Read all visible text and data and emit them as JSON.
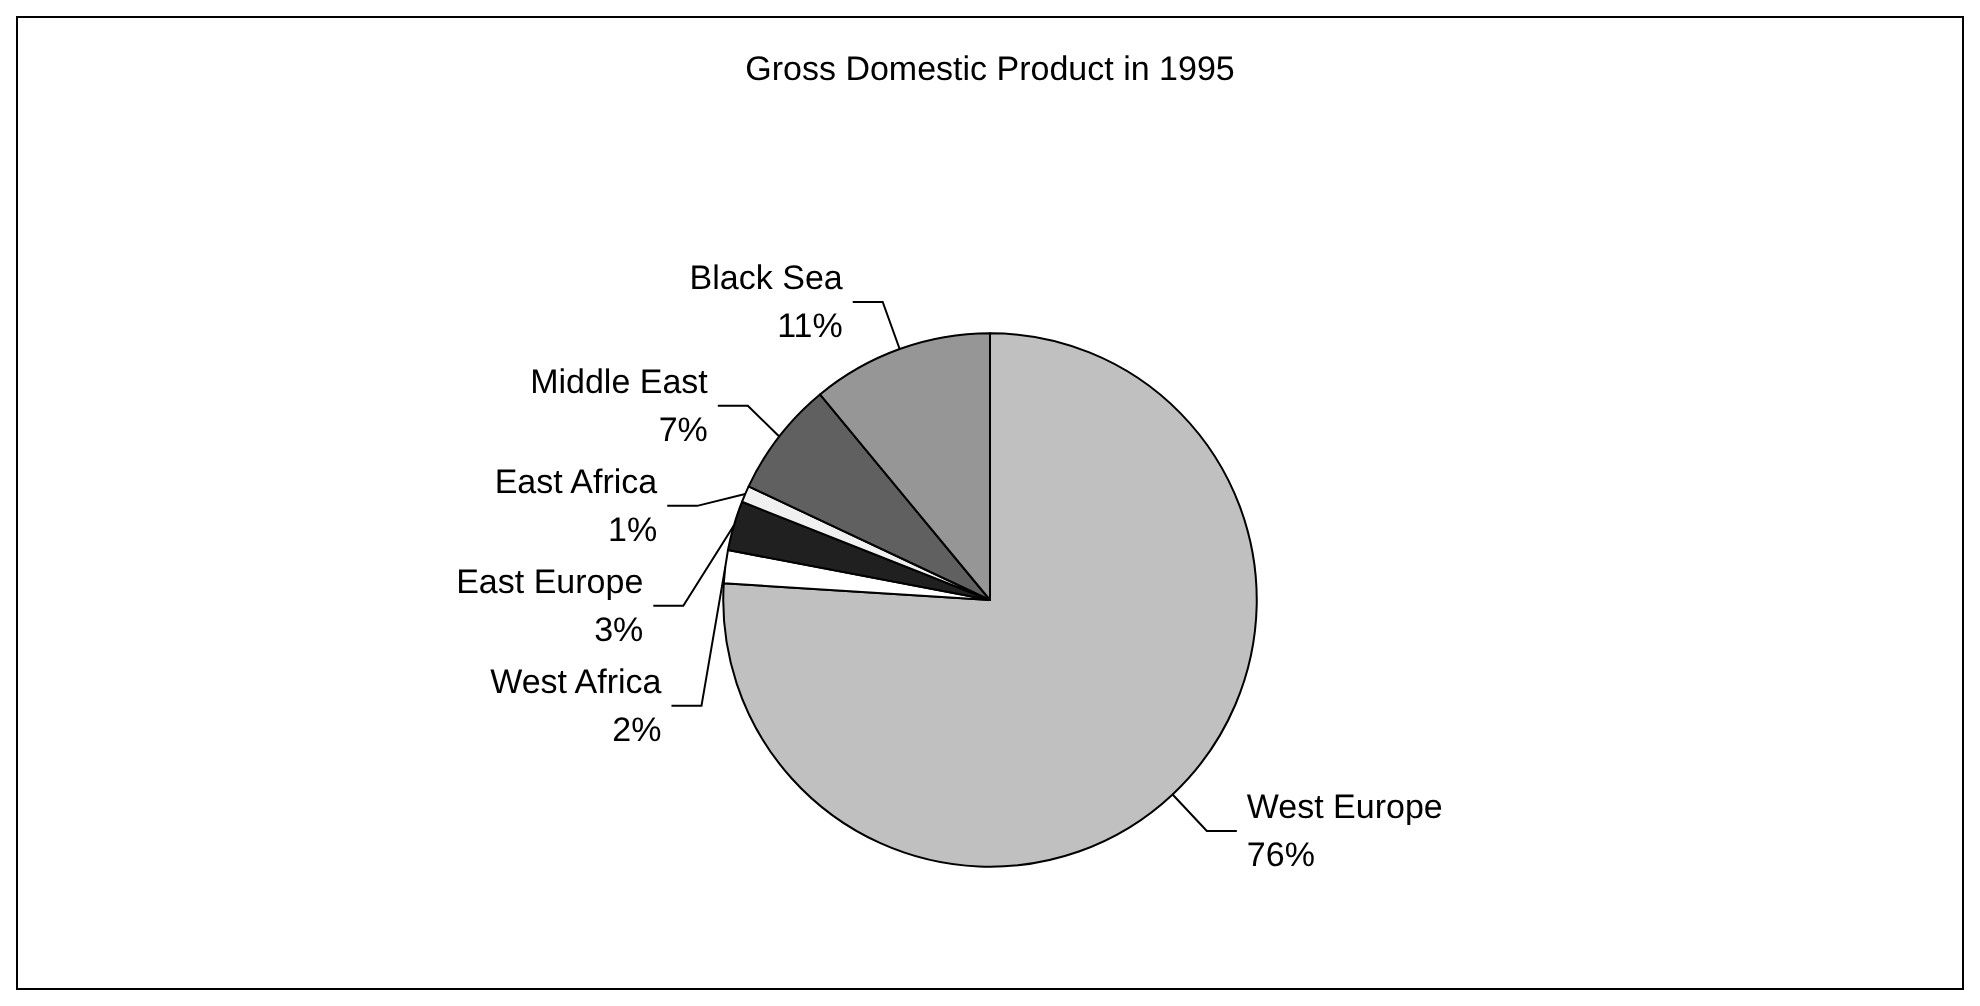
{
  "chart_data": {
    "type": "pie",
    "title": "Gross Domestic Product in 1995",
    "categories": [
      "West Europe",
      "West Africa",
      "East Europe",
      "East Africa",
      "Middle East",
      "Black Sea"
    ],
    "values": [
      76,
      2,
      3,
      1,
      7,
      11
    ],
    "value_labels": [
      "76%",
      "2%",
      "3%",
      "1%",
      "7%",
      "11%"
    ],
    "colors": [
      "#c0c0c0",
      "#ffffff",
      "#202020",
      "#f0f0f0",
      "#606060",
      "#969696"
    ],
    "legend": false
  }
}
